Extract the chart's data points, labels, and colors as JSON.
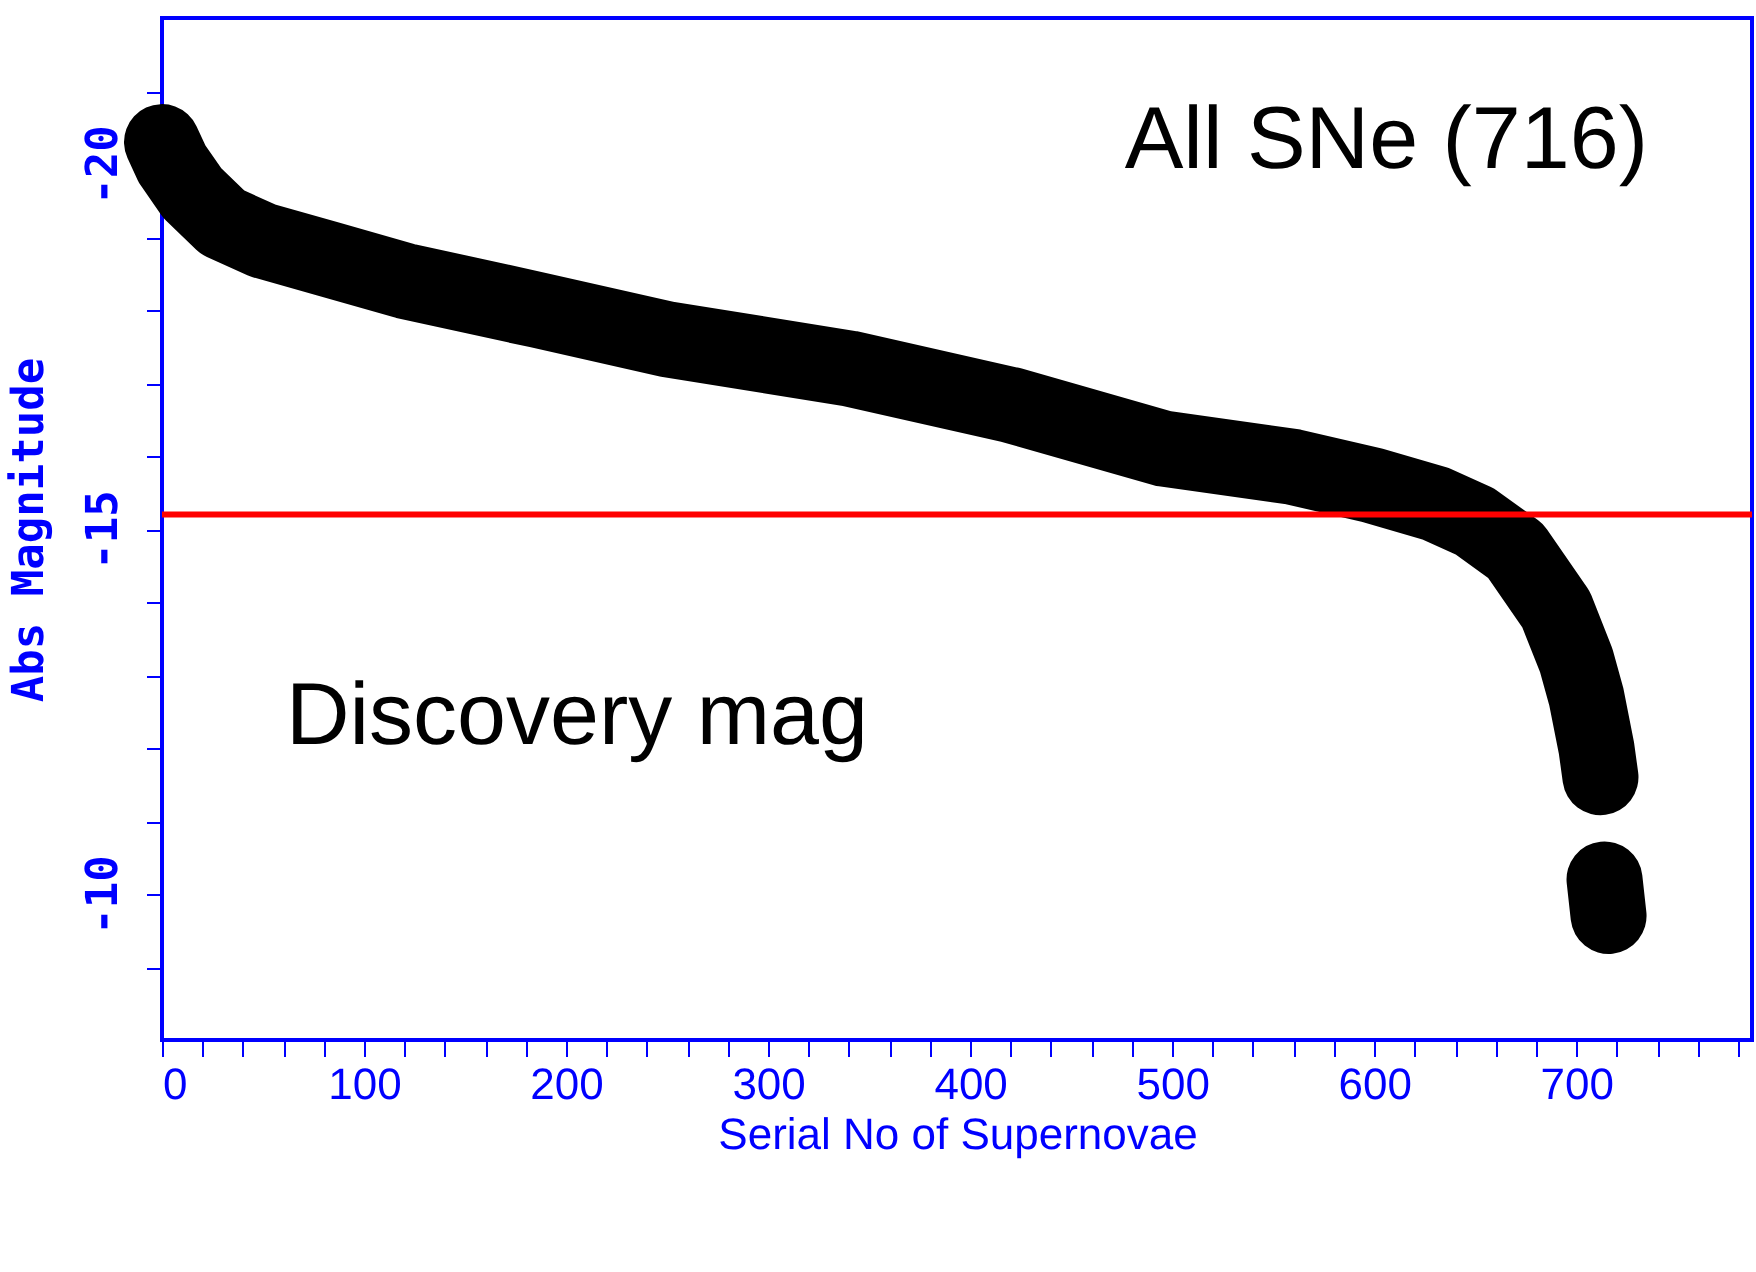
{
  "chart_data": {
    "type": "line",
    "xlabel": "Serial No of Supernovae",
    "ylabel": "Abs Magnitude",
    "annotations": [
      "All SNe (716)",
      "Discovery mag"
    ],
    "x": [
      0,
      5,
      15,
      30,
      50,
      82,
      120,
      186,
      250,
      340,
      420,
      496,
      560,
      599,
      630,
      650,
      670,
      690,
      700,
      705,
      710,
      712,
      713,
      714,
      716
    ],
    "series": [
      {
        "color": "#000000",
        "values": [
          -20.3,
          -20.0,
          -19.6,
          -19.2,
          -18.95,
          -18.7,
          -18.4,
          -18.0,
          -17.6,
          -17.2,
          -16.7,
          -16.1,
          -15.85,
          -15.6,
          -15.35,
          -15.1,
          -14.7,
          -13.9,
          -13.2,
          -12.7,
          -12.0,
          -11.6,
          null,
          -10.2,
          -9.7
        ]
      }
    ],
    "line_style": "solid",
    "xlim": [
      0,
      787
    ],
    "ylim": [
      -8,
      -22
    ],
    "xticks": [
      0,
      {
        "value": 20,
        "label": null
      },
      {
        "value": 40,
        "label": null
      },
      {
        "value": 60,
        "label": null
      },
      {
        "value": 80,
        "label": null
      },
      100,
      {
        "value": 120,
        "label": null
      },
      {
        "value": 140,
        "label": null
      },
      {
        "value": 160,
        "label": null
      },
      {
        "value": 180,
        "label": null
      },
      200,
      {
        "value": 220,
        "label": null
      },
      {
        "value": 240,
        "label": null
      },
      {
        "value": 260,
        "label": null
      },
      {
        "value": 280,
        "label": null
      },
      300,
      {
        "value": 320,
        "label": null
      },
      {
        "value": 340,
        "label": null
      },
      {
        "value": 360,
        "label": null
      },
      {
        "value": 380,
        "label": null
      },
      400,
      {
        "value": 420,
        "label": null
      },
      {
        "value": 440,
        "label": null
      },
      {
        "value": 460,
        "label": null
      },
      {
        "value": 480,
        "label": null
      },
      500,
      {
        "value": 520,
        "label": null
      },
      {
        "value": 540,
        "label": null
      },
      {
        "value": 560,
        "label": null
      },
      {
        "value": 580,
        "label": null
      },
      600,
      {
        "value": 620,
        "label": null
      },
      {
        "value": 640,
        "label": null
      },
      {
        "value": 660,
        "label": null
      },
      {
        "value": 680,
        "label": null
      },
      700,
      {
        "value": 720,
        "label": null
      },
      {
        "value": 740,
        "label": null
      },
      {
        "value": 760,
        "label": null
      },
      {
        "value": 780,
        "label": null
      }
    ],
    "yticks": [
      {
        "value": -9,
        "label": null
      },
      -10,
      {
        "value": -11,
        "label": null
      },
      {
        "value": -12,
        "label": null
      },
      {
        "value": -13,
        "label": null
      },
      {
        "value": -14,
        "label": null
      },
      -15,
      {
        "value": -16,
        "label": null
      },
      {
        "value": -17,
        "label": null
      },
      {
        "value": -18,
        "label": null
      },
      {
        "value": -19,
        "label": null
      },
      -20,
      {
        "value": -21,
        "label": null
      }
    ],
    "ref_lines": [
      {
        "axis": "y",
        "value": -15.2,
        "color": "#ff0000"
      }
    ],
    "grid": false
  }
}
